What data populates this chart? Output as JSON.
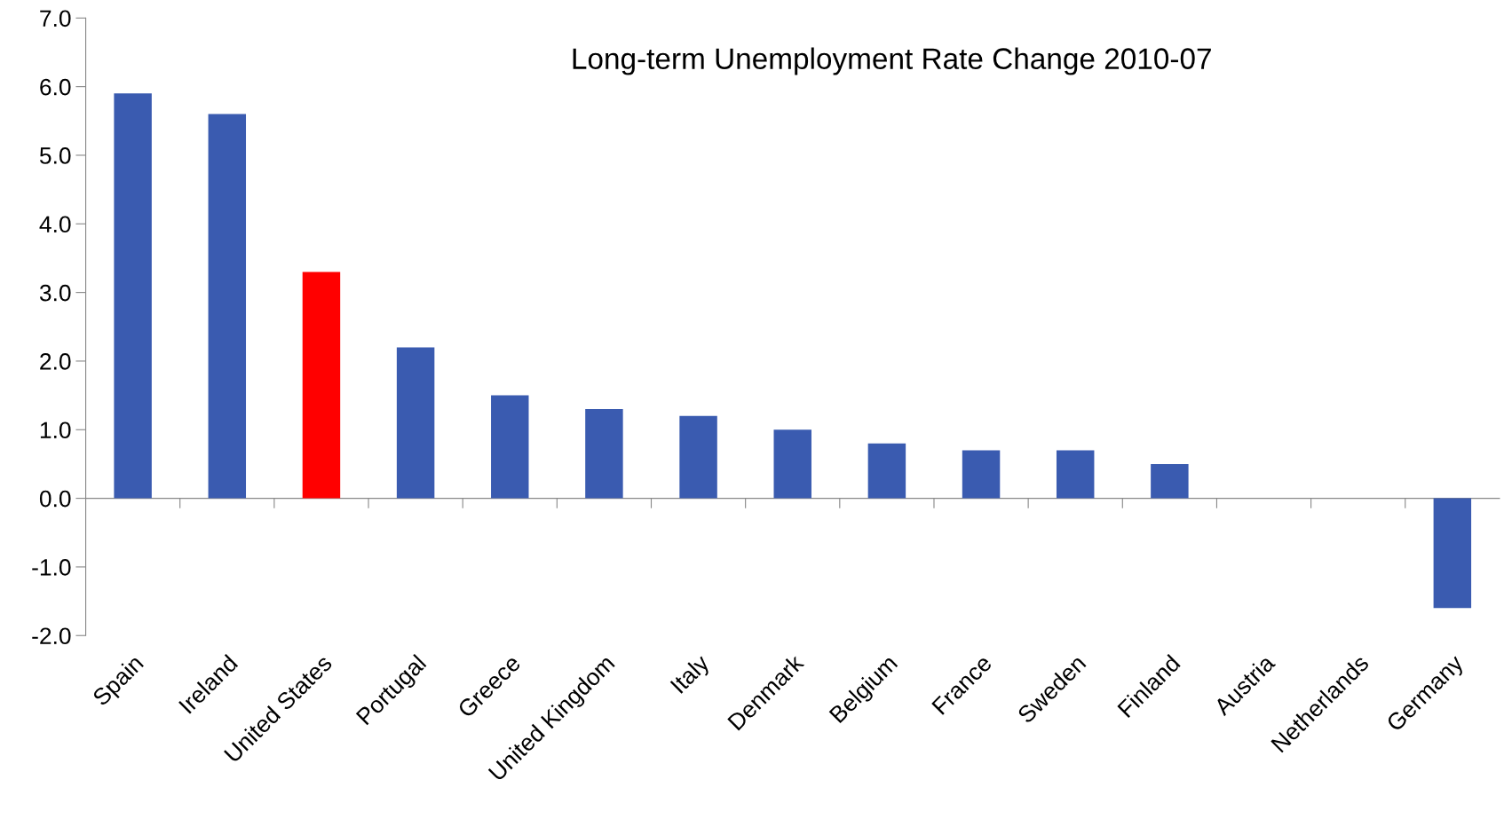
{
  "chart_data": {
    "type": "bar",
    "title": "Long-term Unemployment Rate Change 2010-07",
    "categories": [
      "Spain",
      "Ireland",
      "United States",
      "Portugal",
      "Greece",
      "United Kingdom",
      "Italy",
      "Denmark",
      "Belgium",
      "France",
      "Sweden",
      "Finland",
      "Austria",
      "Netherlands",
      "Germany"
    ],
    "values": [
      5.9,
      5.6,
      3.3,
      2.2,
      1.5,
      1.3,
      1.2,
      1.0,
      0.8,
      0.7,
      0.7,
      0.5,
      0.0,
      0.0,
      -1.6
    ],
    "colors": [
      "#3a5bb0",
      "#3a5bb0",
      "#ff0000",
      "#3a5bb0",
      "#3a5bb0",
      "#3a5bb0",
      "#3a5bb0",
      "#3a5bb0",
      "#3a5bb0",
      "#3a5bb0",
      "#3a5bb0",
      "#3a5bb0",
      "#3a5bb0",
      "#3a5bb0",
      "#3a5bb0"
    ],
    "ylim": [
      -2.0,
      7.0
    ],
    "yticks": [
      {
        "value": -2,
        "label": "-2.0"
      },
      {
        "value": -1,
        "label": "-1.0"
      },
      {
        "value": 0,
        "label": "0.0"
      },
      {
        "value": 1,
        "label": "1.0"
      },
      {
        "value": 2,
        "label": "2.0"
      },
      {
        "value": 3,
        "label": "3.0"
      },
      {
        "value": 4,
        "label": "4.0"
      },
      {
        "value": 5,
        "label": "5.0"
      },
      {
        "value": 6,
        "label": "6.0"
      },
      {
        "value": 7,
        "label": "7.0"
      }
    ],
    "legend": false
  }
}
